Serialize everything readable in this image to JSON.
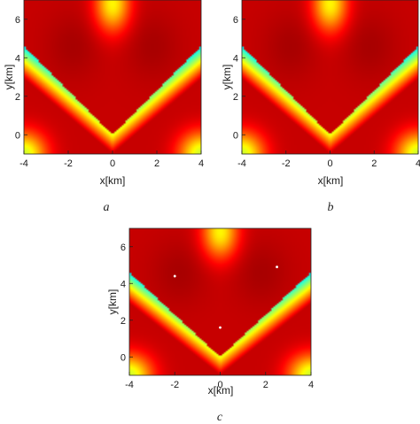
{
  "chart_data": [
    {
      "type": "heatmap",
      "panel_label": "a",
      "xlabel": "x[km]",
      "ylabel": "y[km]",
      "xlim": [
        -4,
        4
      ],
      "ylim": [
        -1,
        7
      ],
      "xticks": [
        "-4",
        "-2",
        "0",
        "2",
        "4"
      ],
      "yticks": [
        "0",
        "2",
        "4",
        "6"
      ],
      "colormap": "jet",
      "markers": []
    },
    {
      "type": "heatmap",
      "panel_label": "b",
      "xlabel": "x[km]",
      "ylabel": "y[km]",
      "xlim": [
        -4,
        4
      ],
      "ylim": [
        -1,
        7
      ],
      "xticks": [
        "-4",
        "-2",
        "0",
        "2",
        "4"
      ],
      "yticks": [
        "0",
        "2",
        "4",
        "6"
      ],
      "colormap": "jet",
      "markers": []
    },
    {
      "type": "heatmap",
      "panel_label": "c",
      "xlabel": "x[km]",
      "ylabel": "y[km]",
      "xlim": [
        -4,
        4
      ],
      "ylim": [
        -1,
        7
      ],
      "xticks": [
        "-4",
        "-2",
        "0",
        "2",
        "4"
      ],
      "yticks": [
        "0",
        "2",
        "4",
        "6"
      ],
      "colormap": "jet",
      "markers": [
        {
          "x": -2.0,
          "y": 4.4
        },
        {
          "x": 2.5,
          "y": 4.9
        },
        {
          "x": 0.0,
          "y": 1.6
        }
      ]
    }
  ]
}
